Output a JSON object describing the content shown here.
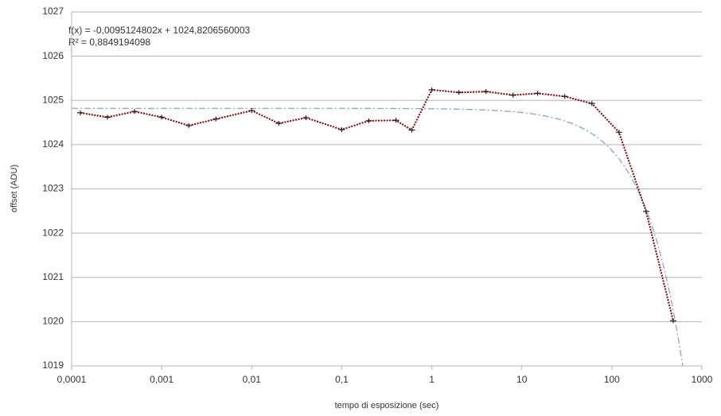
{
  "chart_data": {
    "type": "line",
    "x_label": "tempo di esposizione (sec)",
    "y_label": "offset (ADU)",
    "log_x": true,
    "grid": true,
    "x": [
      0.000125,
      0.00025,
      0.0005,
      0.001,
      0.002,
      0.004,
      0.01,
      0.02,
      0.04,
      0.1,
      0.2,
      0.4,
      0.6,
      1,
      2,
      4,
      8,
      15,
      30,
      60,
      120,
      240,
      480
    ],
    "series": [
      {
        "color": "#8b0000",
        "marker_color": "#222222",
        "values": [
          1024.72,
          1024.62,
          1024.75,
          1024.62,
          1024.43,
          1024.58,
          1024.77,
          1024.48,
          1024.61,
          1024.34,
          1024.54,
          1024.55,
          1024.33,
          1025.24,
          1025.18,
          1025.2,
          1025.12,
          1025.16,
          1025.09,
          1024.93,
          1024.28,
          1022.49,
          1020.02
        ]
      }
    ],
    "trendline": {
      "slope": -0.0095124802,
      "intercept": 1024.8206560003,
      "color": "#7fa8c9",
      "equation": "f(x) = -0,0095124802x + 1024,8206560003",
      "r2": "R² = 0,8849194098"
    },
    "xlim": [
      0.0001,
      1000
    ],
    "xticks": [
      {
        "value": 0.0001,
        "label": "0,0001"
      },
      {
        "value": 0.001,
        "label": "0,001"
      },
      {
        "value": 0.01,
        "label": "0,01"
      },
      {
        "value": 0.1,
        "label": "0,1"
      },
      1,
      10,
      100,
      1000
    ],
    "ylim": [
      1019,
      1027
    ],
    "yticks": [
      1019,
      1020,
      1021,
      1022,
      1023,
      1024,
      1025,
      1026,
      1027
    ]
  }
}
